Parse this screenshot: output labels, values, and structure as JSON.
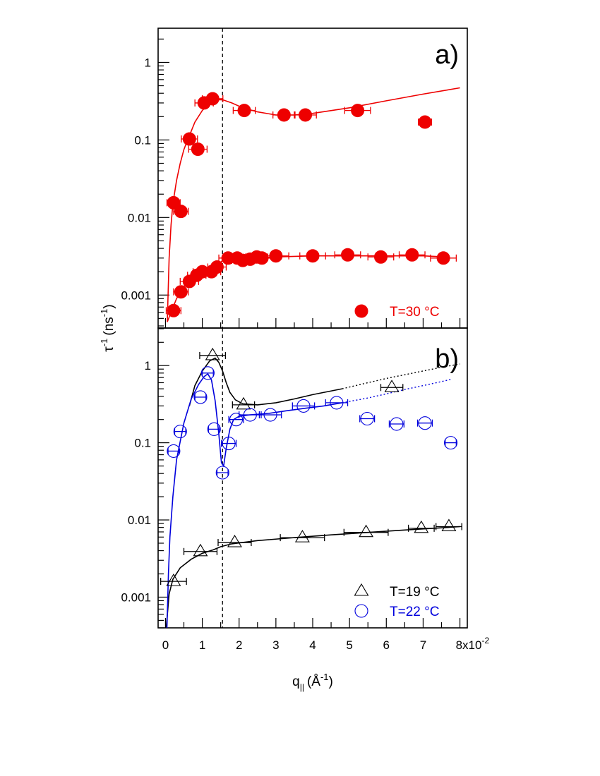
{
  "chart_data": {
    "type": "scatter",
    "figure_title": "",
    "xlabel": "q",
    "xlabel_subscript": "||",
    "xlabel_unit": "(Å",
    "xlabel_unit_sup": "-1",
    "xlabel_unit_close": ")",
    "ylabel": "τ",
    "ylabel_sup": "-1",
    "ylabel_unit": "(ns",
    "ylabel_unit_sup": "-1",
    "ylabel_unit_close": ")",
    "x_scale_label": "x10",
    "x_scale_exp": "-2",
    "x_tick_labels": [
      "0",
      "1",
      "2",
      "3",
      "4",
      "5",
      "6",
      "7",
      "8"
    ],
    "xlim": [
      -0.2,
      8.2
    ],
    "y_scale": "log",
    "x_units_multiplier": 0.01,
    "vertical_reference_line_x": 1.55,
    "colors": {
      "red": "#ee0000",
      "blue": "#0000dd",
      "black": "#000000"
    },
    "panels": [
      {
        "label": "a)",
        "ylim": [
          0.0004,
          3
        ],
        "y_tick_labels": [
          {
            "value": 0.001,
            "label": "0.001"
          },
          {
            "value": 0.01,
            "label": "0.01"
          },
          {
            "value": 0.1,
            "label": "0.1"
          },
          {
            "value": 1,
            "label": "1"
          }
        ],
        "legend": [
          {
            "name": "T=30 °C",
            "marker": "filled-circle",
            "color": "#ee0000"
          }
        ],
        "series": [
          {
            "name": "T=30 °C fast mode",
            "marker": "filled-circle",
            "color": "#ee0000",
            "points": [
              {
                "x": 0.22,
                "y": 0.0155,
                "xerr": 0.18
              },
              {
                "x": 0.42,
                "y": 0.012,
                "xerr": 0.2
              },
              {
                "x": 0.65,
                "y": 0.103,
                "xerr": 0.22
              },
              {
                "x": 0.88,
                "y": 0.076,
                "xerr": 0.25
              },
              {
                "x": 1.05,
                "y": 0.3,
                "xerr": 0.25
              },
              {
                "x": 1.28,
                "y": 0.34,
                "xerr": 0.28
              },
              {
                "x": 2.14,
                "y": 0.24,
                "xerr": 0.3
              },
              {
                "x": 3.22,
                "y": 0.21,
                "xerr": 0.3
              },
              {
                "x": 3.8,
                "y": 0.21,
                "xerr": 0.3
              },
              {
                "x": 5.22,
                "y": 0.24,
                "xerr": 0.35
              },
              {
                "x": 7.05,
                "y": 0.17,
                "xerr": 0.18
              }
            ]
          },
          {
            "name": "T=30 °C slow mode",
            "marker": "filled-circle",
            "color": "#ee0000",
            "points": [
              {
                "x": 0.22,
                "y": 0.00063,
                "xerr": 0.2
              },
              {
                "x": 0.42,
                "y": 0.0011,
                "xerr": 0.2
              },
              {
                "x": 0.65,
                "y": 0.0015,
                "xerr": 0.25
              },
              {
                "x": 0.85,
                "y": 0.0018,
                "xerr": 0.25
              },
              {
                "x": 1.0,
                "y": 0.002,
                "xerr": 0.25
              },
              {
                "x": 1.25,
                "y": 0.002,
                "xerr": 0.25
              },
              {
                "x": 1.4,
                "y": 0.0023,
                "xerr": 0.25
              },
              {
                "x": 1.7,
                "y": 0.003,
                "xerr": 0.25
              },
              {
                "x": 1.95,
                "y": 0.003,
                "xerr": 0.25
              },
              {
                "x": 2.1,
                "y": 0.0028,
                "xerr": 0.3
              },
              {
                "x": 2.3,
                "y": 0.0029,
                "xerr": 0.3
              },
              {
                "x": 2.48,
                "y": 0.0031,
                "xerr": 0.3
              },
              {
                "x": 2.62,
                "y": 0.003,
                "xerr": 0.3
              },
              {
                "x": 3.0,
                "y": 0.0032,
                "xerr": 0.35
              },
              {
                "x": 4.0,
                "y": 0.0032,
                "xerr": 0.35
              },
              {
                "x": 4.95,
                "y": 0.0033,
                "xerr": 0.35
              },
              {
                "x": 5.85,
                "y": 0.0031,
                "xerr": 0.35
              },
              {
                "x": 6.7,
                "y": 0.0033,
                "xerr": 0.35
              },
              {
                "x": 7.55,
                "y": 0.003,
                "xerr": 0.35
              }
            ]
          }
        ],
        "curves": [
          {
            "name": "fit fast mode",
            "color": "#ee0000",
            "style": "solid",
            "points": [
              [
                0.05,
                0.00045
              ],
              [
                0.1,
                0.003
              ],
              [
                0.15,
                0.008
              ],
              [
                0.2,
                0.015
              ],
              [
                0.3,
                0.03
              ],
              [
                0.4,
                0.05
              ],
              [
                0.5,
                0.075
              ],
              [
                0.6,
                0.1
              ],
              [
                0.7,
                0.13
              ],
              [
                0.8,
                0.17
              ],
              [
                1.0,
                0.24
              ],
              [
                1.2,
                0.3
              ],
              [
                1.4,
                0.33
              ],
              [
                1.55,
                0.33
              ],
              [
                1.8,
                0.3
              ],
              [
                2.1,
                0.26
              ],
              [
                2.5,
                0.23
              ],
              [
                3.0,
                0.21
              ],
              [
                3.5,
                0.21
              ],
              [
                4.0,
                0.22
              ],
              [
                5.0,
                0.26
              ],
              [
                6.0,
                0.32
              ],
              [
                7.0,
                0.39
              ],
              [
                8.0,
                0.47
              ]
            ]
          },
          {
            "name": "fit slow mode",
            "color": "#ee0000",
            "style": "solid",
            "points": [
              [
                0.05,
                0.00045
              ],
              [
                0.15,
                0.0006
              ],
              [
                0.3,
                0.0009
              ],
              [
                0.5,
                0.0013
              ],
              [
                0.7,
                0.0016
              ],
              [
                0.9,
                0.0018
              ],
              [
                1.1,
                0.002
              ],
              [
                1.3,
                0.0022
              ],
              [
                1.45,
                0.0025
              ],
              [
                1.55,
                0.0028
              ],
              [
                1.7,
                0.003
              ],
              [
                2.0,
                0.003
              ],
              [
                2.5,
                0.003
              ],
              [
                3.0,
                0.0031
              ],
              [
                4.0,
                0.0032
              ],
              [
                5.0,
                0.0032
              ],
              [
                6.0,
                0.0032
              ],
              [
                7.0,
                0.0032
              ],
              [
                7.6,
                0.0031
              ]
            ]
          }
        ]
      },
      {
        "label": "b)",
        "ylim": [
          0.0004,
          3
        ],
        "y_tick_labels": [
          {
            "value": 0.001,
            "label": "0.001"
          },
          {
            "value": 0.01,
            "label": "0.01"
          },
          {
            "value": 0.1,
            "label": "0.1"
          },
          {
            "value": 1,
            "label": "1"
          }
        ],
        "legend": [
          {
            "name": "T=19 °C",
            "marker": "open-triangle",
            "color": "#000000"
          },
          {
            "name": "T=22 °C",
            "marker": "open-circle",
            "color": "#0000dd"
          }
        ],
        "series": [
          {
            "name": "T=19 °C fast mode",
            "marker": "open-triangle",
            "color": "#000000",
            "points": [
              {
                "x": 1.28,
                "y": 1.35,
                "xerr": 0.35
              },
              {
                "x": 2.12,
                "y": 0.31,
                "xerr": 0.3
              },
              {
                "x": 6.15,
                "y": 0.52,
                "xerr": 0.3
              }
            ]
          },
          {
            "name": "T=19 °C slow mode",
            "marker": "open-triangle",
            "color": "#000000",
            "points": [
              {
                "x": 0.22,
                "y": 0.0016,
                "xerr": 0.35
              },
              {
                "x": 0.95,
                "y": 0.0039,
                "xerr": 0.45
              },
              {
                "x": 1.88,
                "y": 0.0051,
                "xerr": 0.45
              },
              {
                "x": 3.72,
                "y": 0.0059,
                "xerr": 0.6
              },
              {
                "x": 5.45,
                "y": 0.0069,
                "xerr": 0.6
              },
              {
                "x": 6.95,
                "y": 0.0078,
                "xerr": 0.35
              },
              {
                "x": 7.7,
                "y": 0.0082,
                "xerr": 0.35
              }
            ]
          },
          {
            "name": "T=22 °C",
            "marker": "open-circle",
            "color": "#0000dd",
            "points": [
              {
                "x": 0.22,
                "y": 0.078,
                "xerr": 0.15
              },
              {
                "x": 0.4,
                "y": 0.14,
                "xerr": 0.15
              },
              {
                "x": 0.95,
                "y": 0.39,
                "xerr": 0.15
              },
              {
                "x": 1.15,
                "y": 0.8,
                "xerr": 0.15
              },
              {
                "x": 1.32,
                "y": 0.15,
                "xerr": 0.15
              },
              {
                "x": 1.55,
                "y": 0.041,
                "xerr": 0.15
              },
              {
                "x": 1.72,
                "y": 0.098,
                "xerr": 0.2
              },
              {
                "x": 1.92,
                "y": 0.2,
                "xerr": 0.2
              },
              {
                "x": 2.3,
                "y": 0.23,
                "xerr": 0.3
              },
              {
                "x": 2.85,
                "y": 0.23,
                "xerr": 0.3
              },
              {
                "x": 3.75,
                "y": 0.3,
                "xerr": 0.3
              },
              {
                "x": 4.65,
                "y": 0.33,
                "xerr": 0.3
              },
              {
                "x": 5.48,
                "y": 0.205,
                "xerr": 0.2
              },
              {
                "x": 6.28,
                "y": 0.175,
                "xerr": 0.2
              },
              {
                "x": 7.05,
                "y": 0.18,
                "xerr": 0.2
              },
              {
                "x": 7.75,
                "y": 0.1,
                "xerr": 0.15
              }
            ]
          }
        ],
        "curves": [
          {
            "name": "fit T=19 °C fast",
            "color": "#000000",
            "style": "solid",
            "points": [
              [
                0.65,
                0.3
              ],
              [
                0.8,
                0.55
              ],
              [
                1.0,
                0.85
              ],
              [
                1.2,
                1.15
              ],
              [
                1.35,
                1.25
              ],
              [
                1.45,
                1.1
              ],
              [
                1.55,
                0.85
              ],
              [
                1.65,
                0.6
              ],
              [
                1.75,
                0.45
              ],
              [
                1.9,
                0.36
              ],
              [
                2.1,
                0.32
              ],
              [
                2.5,
                0.31
              ],
              [
                3.0,
                0.33
              ],
              [
                3.5,
                0.37
              ],
              [
                4.0,
                0.42
              ],
              [
                4.8,
                0.5
              ]
            ]
          },
          {
            "name": "fit T=19 °C fast extrapolated",
            "color": "#000000",
            "style": "dotted",
            "points": [
              [
                4.8,
                0.5
              ],
              [
                5.5,
                0.6
              ],
              [
                6.0,
                0.68
              ],
              [
                6.5,
                0.76
              ],
              [
                7.0,
                0.85
              ],
              [
                7.5,
                0.95
              ],
              [
                8.0,
                1.05
              ]
            ]
          },
          {
            "name": "fit T=19 °C slow",
            "color": "#000000",
            "style": "solid",
            "points": [
              [
                0.02,
                0.0004
              ],
              [
                0.1,
                0.0011
              ],
              [
                0.2,
                0.0017
              ],
              [
                0.4,
                0.0024
              ],
              [
                0.7,
                0.0031
              ],
              [
                1.0,
                0.0037
              ],
              [
                1.3,
                0.0041
              ],
              [
                1.5,
                0.0045
              ],
              [
                1.8,
                0.0049
              ],
              [
                2.5,
                0.0054
              ],
              [
                3.5,
                0.0059
              ],
              [
                4.5,
                0.0064
              ],
              [
                5.5,
                0.0069
              ],
              [
                6.5,
                0.0074
              ],
              [
                7.5,
                0.0079
              ],
              [
                8.0,
                0.0082
              ]
            ]
          },
          {
            "name": "fit T=22 °C",
            "color": "#0000dd",
            "style": "solid",
            "points": [
              [
                0.04,
                0.0004
              ],
              [
                0.08,
                0.002
              ],
              [
                0.12,
                0.006
              ],
              [
                0.2,
                0.02
              ],
              [
                0.3,
                0.06
              ],
              [
                0.5,
                0.18
              ],
              [
                0.7,
                0.37
              ],
              [
                0.9,
                0.57
              ],
              [
                1.05,
                0.72
              ],
              [
                1.15,
                0.78
              ],
              [
                1.25,
                0.65
              ],
              [
                1.35,
                0.35
              ],
              [
                1.45,
                0.13
              ],
              [
                1.52,
                0.055
              ],
              [
                1.58,
                0.05
              ],
              [
                1.65,
                0.085
              ],
              [
                1.75,
                0.15
              ],
              [
                1.85,
                0.2
              ],
              [
                2.0,
                0.22
              ],
              [
                2.3,
                0.23
              ],
              [
                2.8,
                0.24
              ],
              [
                3.3,
                0.26
              ],
              [
                3.8,
                0.28
              ],
              [
                4.3,
                0.3
              ],
              [
                4.8,
                0.33
              ]
            ]
          },
          {
            "name": "fit T=22 °C extrapolated",
            "color": "#0000dd",
            "style": "dotted",
            "points": [
              [
                4.8,
                0.33
              ],
              [
                5.5,
                0.38
              ],
              [
                6.0,
                0.43
              ],
              [
                6.5,
                0.49
              ],
              [
                7.0,
                0.55
              ],
              [
                7.5,
                0.62
              ],
              [
                7.8,
                0.67
              ]
            ]
          }
        ]
      }
    ]
  }
}
